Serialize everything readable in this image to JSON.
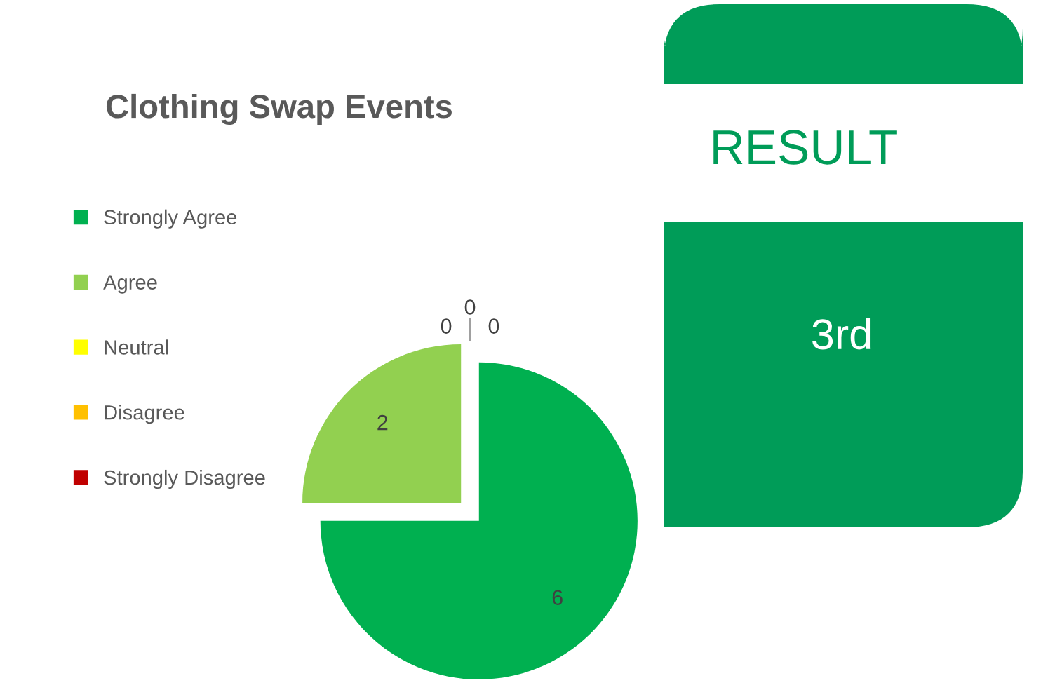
{
  "chart_data": [
    {
      "type": "pie",
      "title": "Clothing Swap Events",
      "categories": [
        "Strongly Agree",
        "Agree",
        "Neutral",
        "Disagree",
        "Strongly Disagree"
      ],
      "values": [
        6,
        2,
        0,
        0,
        0
      ],
      "colors": [
        "#00b050",
        "#92d050",
        "#ffff00",
        "#ffc000",
        "#c00000"
      ],
      "value_labels": [
        "6",
        "2",
        "0",
        "0",
        "0"
      ],
      "legend": "left"
    },
    {
      "type": "other",
      "title": "RESULT",
      "annotations": [
        "3rd"
      ]
    }
  ]
}
